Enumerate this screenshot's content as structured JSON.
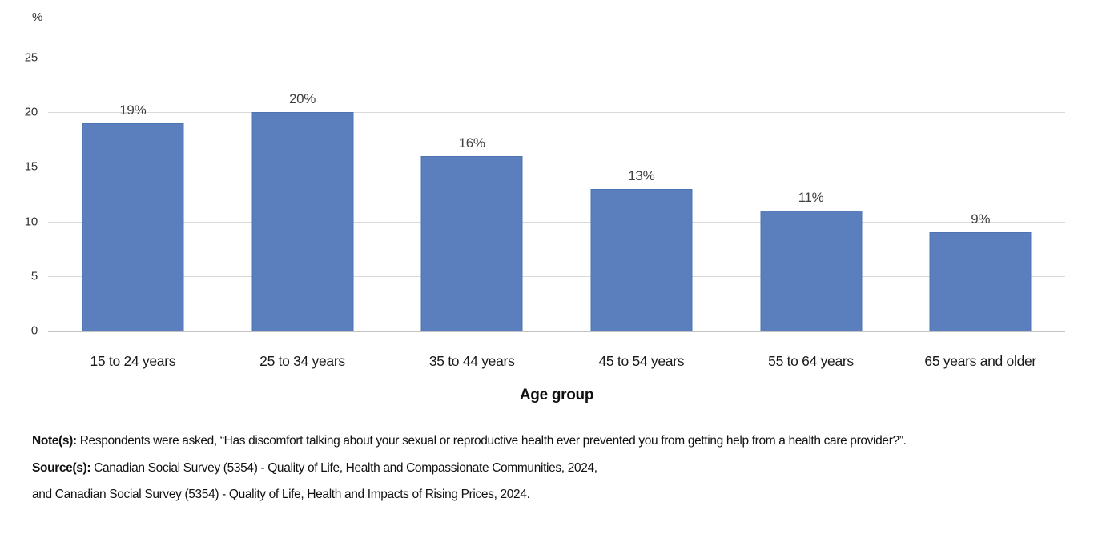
{
  "chart_data": {
    "type": "bar",
    "title": "",
    "unit_label": "%",
    "categories": [
      "15 to 24 years",
      "25 to 34 years",
      "35 to 44 years",
      "45 to 54 years",
      "55 to 64 years",
      "65 years and older"
    ],
    "values": [
      19,
      20,
      16,
      13,
      11,
      9
    ],
    "value_labels": [
      "19%",
      "20%",
      "16%",
      "13%",
      "11%",
      "9%"
    ],
    "xlabel": "Age group",
    "ylabel": "%",
    "ylim": [
      0,
      25
    ],
    "yticks": [
      0,
      5,
      10,
      15,
      20,
      25
    ],
    "grid": true,
    "legend_position": "none",
    "bar_color": "#5b7ebd",
    "bar_border_color": "#4c74b3",
    "gridline_color": "#d9d9d9"
  },
  "notes": {
    "note_label": "Note(s):",
    "note_text": " Respondents were asked, “Has discomfort talking about your sexual or reproductive health ever prevented you from getting help from a health care provider?”.",
    "source_label": "Source(s):",
    "source_text": " Canadian Social Survey (5354) - Quality of Life, Health and Compassionate Communities, 2024,",
    "source_text_2": "and Canadian Social Survey (5354) - Quality of Life, Health and Impacts of Rising Prices, 2024."
  }
}
